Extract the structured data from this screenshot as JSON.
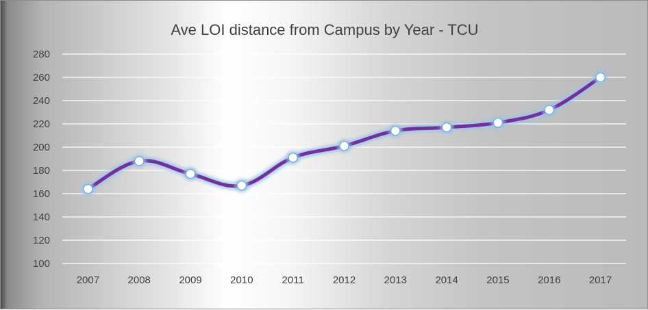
{
  "chart_data": {
    "type": "line",
    "title": "Ave LOI distance from Campus by Year - TCU",
    "xlabel": "",
    "ylabel": "",
    "categories": [
      "2007",
      "2008",
      "2009",
      "2010",
      "2011",
      "2012",
      "2013",
      "2014",
      "2015",
      "2016",
      "2017"
    ],
    "series": [
      {
        "values": [
          164,
          188,
          177,
          167,
          191,
          201,
          214,
          217,
          221,
          232,
          260
        ]
      }
    ],
    "ylim": [
      100,
      280
    ],
    "yticks": [
      "100",
      "120",
      "140",
      "160",
      "180",
      "200",
      "220",
      "240",
      "260",
      "280"
    ],
    "grid": true,
    "legend": "none",
    "smooth": true,
    "colors": {
      "line": "#7030a0",
      "marker_fill": "#ffffff",
      "glow": "#9dc3e6"
    }
  }
}
